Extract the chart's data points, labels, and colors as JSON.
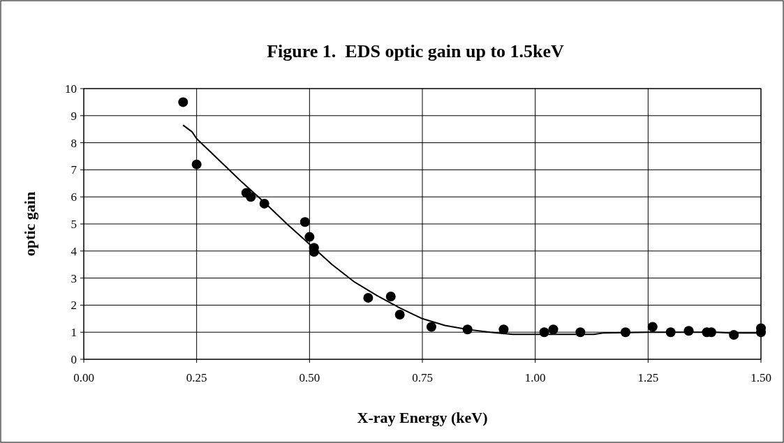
{
  "chart_data": {
    "type": "scatter",
    "title": "Figure 1.  EDS optic gain up to 1.5keV",
    "xlabel": "X-ray Energy (keV)",
    "ylabel": "optic gain",
    "xlim": [
      0,
      1.5
    ],
    "xticks": [
      {
        "value": 0,
        "label": "0.00"
      },
      {
        "value": 0.25,
        "label": "0.25"
      },
      {
        "value": 0.5,
        "label": "0.50"
      },
      {
        "value": 0.75,
        "label": "0.75"
      },
      {
        "value": 1,
        "label": "1.00"
      },
      {
        "value": 1.25,
        "label": "1.25"
      },
      {
        "value": 1.5,
        "label": "1.50"
      }
    ],
    "ylim": [
      0,
      10
    ],
    "yticks": [
      0,
      1,
      2,
      3,
      4,
      5,
      6,
      7,
      8,
      9,
      10
    ],
    "grid": true,
    "series": [
      {
        "marker": "circle",
        "color": "#000000",
        "x": [
          0.22,
          0.25,
          0.36,
          0.37,
          0.4,
          0.49,
          0.5,
          0.51,
          0.51,
          0.63,
          0.68,
          0.7,
          0.77,
          0.85,
          0.93,
          1.02,
          1.04,
          1.1,
          1.2,
          1.26,
          1.3,
          1.34,
          1.38,
          1.39,
          1.44,
          1.5,
          1.5
        ],
        "values": [
          9.5,
          7.2,
          6.15,
          6.0,
          5.75,
          5.07,
          4.52,
          4.12,
          3.97,
          2.27,
          2.32,
          1.65,
          1.2,
          1.1,
          1.1,
          1.0,
          1.1,
          1.0,
          1.0,
          1.2,
          1.0,
          1.05,
          1.0,
          1.0,
          0.9,
          1.0,
          1.15
        ]
      },
      {
        "type": "line",
        "color": "#000000",
        "line_style": "solid",
        "x": [
          0.22,
          0.24,
          0.25,
          0.3,
          0.35,
          0.37,
          0.4,
          0.45,
          0.5,
          0.55,
          0.6,
          0.65,
          0.7,
          0.75,
          0.8,
          0.85,
          0.9,
          0.95,
          1.0,
          1.1,
          1.13,
          1.15,
          1.25,
          1.4,
          1.43,
          1.5
        ],
        "values": [
          8.65,
          8.4,
          8.15,
          7.35,
          6.55,
          6.25,
          5.8,
          5.0,
          4.25,
          3.5,
          2.85,
          2.35,
          1.9,
          1.5,
          1.25,
          1.1,
          1.0,
          0.92,
          0.92,
          0.92,
          0.92,
          0.97,
          1.0,
          1.0,
          0.97,
          0.97
        ]
      }
    ]
  }
}
